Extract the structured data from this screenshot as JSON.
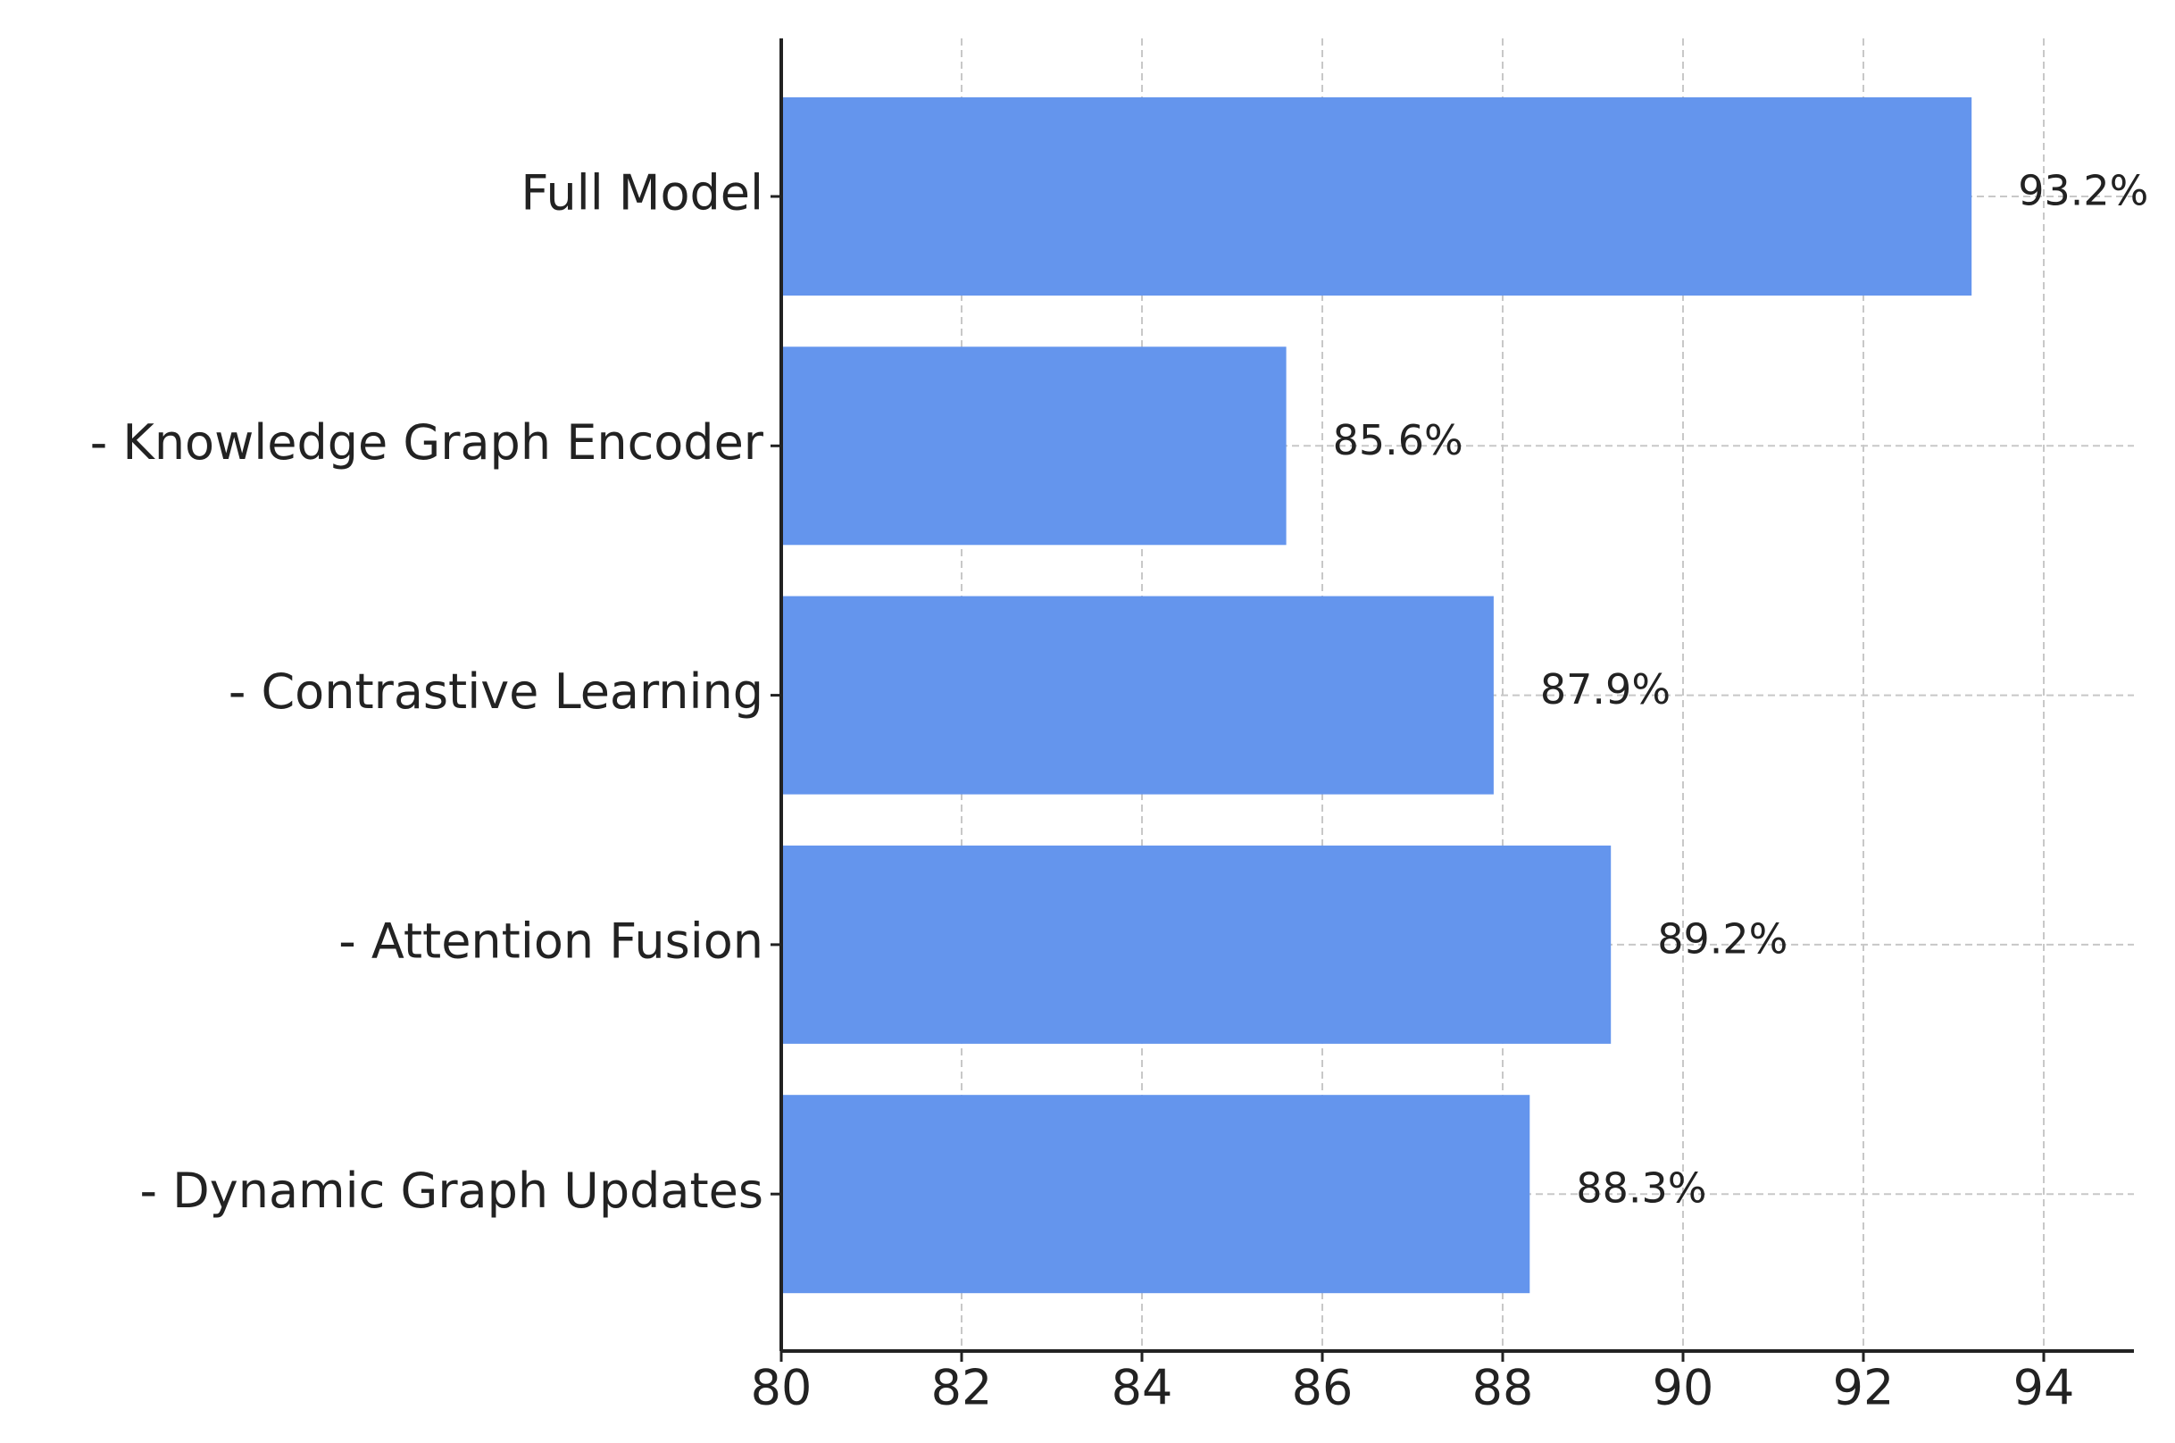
{
  "chart_data": {
    "type": "barh",
    "categories": [
      "Full Model",
      "- Knowledge Graph Encoder",
      "- Contrastive Learning",
      "- Attention Fusion",
      "- Dynamic Graph Updates"
    ],
    "values": [
      93.2,
      85.6,
      87.9,
      89.2,
      88.3
    ],
    "value_labels": [
      "93.2%",
      "85.6%",
      "87.9%",
      "89.2%",
      "88.3%"
    ],
    "color": "#6495ed",
    "xlim": [
      80,
      95
    ],
    "xticks": [
      80,
      82,
      84,
      86,
      88,
      90,
      92,
      94
    ],
    "grid": true
  }
}
